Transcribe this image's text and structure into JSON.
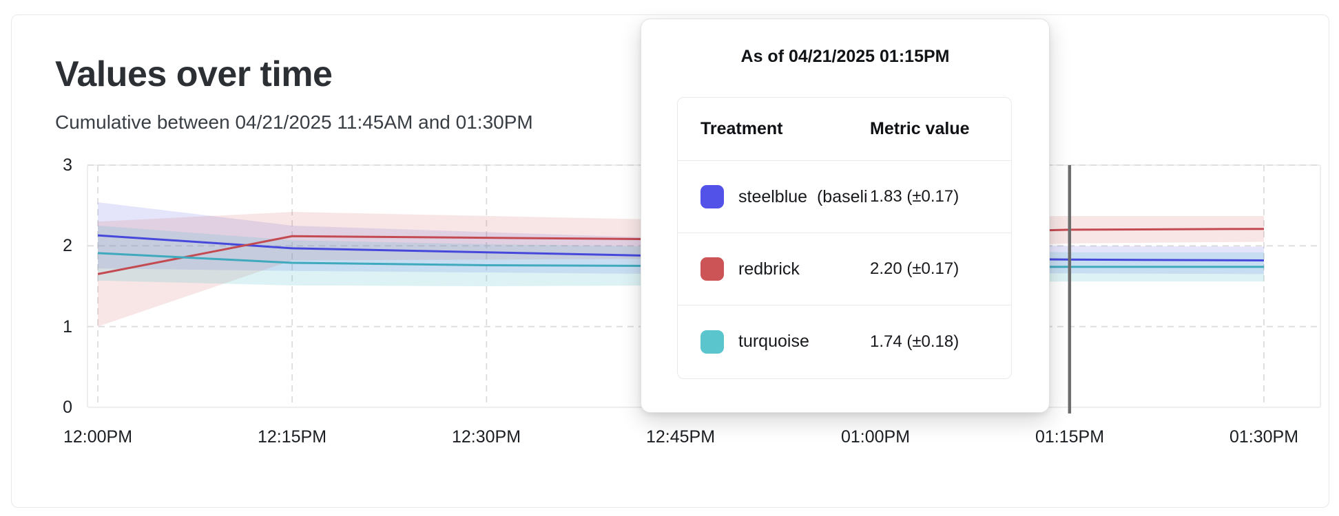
{
  "card": {
    "title": "Values over time",
    "subtitle": "Cumulative between 04/21/2025 11:45AM and 01:30PM"
  },
  "chart_data": {
    "type": "line",
    "title": "Values over time",
    "x_labels": [
      "12:00PM",
      "12:15PM",
      "12:30PM",
      "12:45PM",
      "01:00PM",
      "01:15PM",
      "01:30PM"
    ],
    "y_ticks": [
      0,
      1,
      2,
      3
    ],
    "ylim": [
      0,
      3
    ],
    "grid": "dashed",
    "legend_position": "none",
    "hover_time": "01:15PM",
    "hover_index": 5,
    "hover_line_color": "#6d6d6d",
    "series": [
      {
        "id": "steelblue",
        "name": "steelblue  (baseli",
        "line_color": "#4648dc",
        "band_color": "rgba(88,86,233,0.16)",
        "values": [
          2.13,
          1.97,
          1.92,
          1.87,
          1.85,
          1.83,
          1.82
        ],
        "ci": [
          0.41,
          0.28,
          0.25,
          0.22,
          0.19,
          0.17,
          0.17
        ]
      },
      {
        "id": "redbrick",
        "name": "redbrick",
        "line_color": "#c44a52",
        "band_color": "rgba(205,84,86,0.15)",
        "values": [
          1.65,
          2.12,
          2.1,
          2.08,
          2.14,
          2.2,
          2.21
        ],
        "ci": [
          0.65,
          0.3,
          0.27,
          0.24,
          0.2,
          0.17,
          0.16
        ]
      },
      {
        "id": "turquoise",
        "name": "turquoise",
        "line_color": "#3fa9bd",
        "band_color": "rgba(96,194,206,0.22)",
        "values": [
          1.91,
          1.79,
          1.76,
          1.75,
          1.74,
          1.74,
          1.74
        ],
        "ci": [
          0.34,
          0.28,
          0.26,
          0.24,
          0.21,
          0.18,
          0.18
        ]
      }
    ]
  },
  "tooltip": {
    "title": "As of 04/21/2025 01:15PM",
    "columns": {
      "treatment": "Treatment",
      "metric": "Metric value"
    },
    "rows": [
      {
        "name": "steelblue  (baseli",
        "swatch": "#5352e8",
        "value": "1.83 (±0.17)"
      },
      {
        "name": "redbrick",
        "swatch": "#cd5456",
        "value": "2.20 (±0.17)"
      },
      {
        "name": "turquoise",
        "swatch": "#5bc5ce",
        "value": "1.74 (±0.18)"
      }
    ]
  }
}
